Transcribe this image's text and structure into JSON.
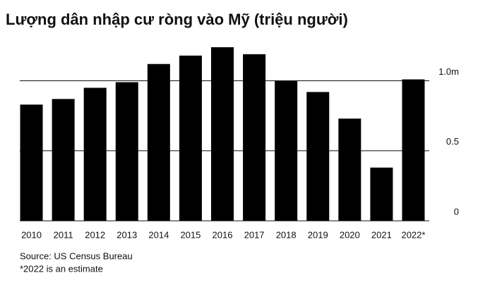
{
  "chart_data": {
    "type": "bar",
    "title": "Lượng dân nhập cư ròng vào Mỹ (triệu người)",
    "categories": [
      "2010",
      "2011",
      "2012",
      "2013",
      "2014",
      "2015",
      "2016",
      "2017",
      "2018",
      "2019",
      "2020",
      "2021",
      "2022*"
    ],
    "values": [
      0.83,
      0.87,
      0.95,
      0.99,
      1.12,
      1.18,
      1.24,
      1.19,
      1.0,
      0.92,
      0.73,
      0.38,
      1.01
    ],
    "color": "#000000",
    "ylim": [
      0,
      1.3
    ],
    "yticks": [
      0,
      0.5,
      {
        "value": 1,
        "label": "1.0m"
      }
    ],
    "grid": true,
    "source": "Source: US Census Bureau",
    "note": "*2022 is an estimate"
  }
}
